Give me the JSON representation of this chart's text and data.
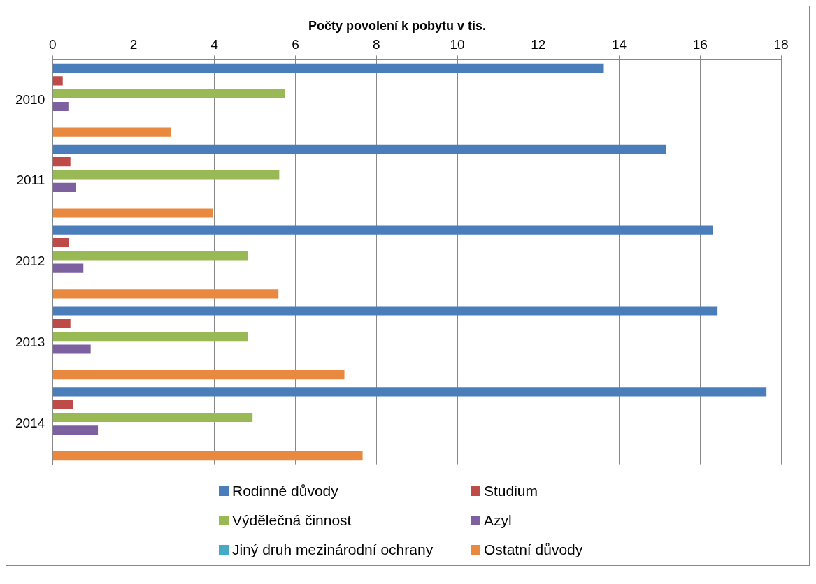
{
  "chart_data": {
    "type": "bar",
    "orientation": "horizontal",
    "title": "Počty povolení k pobytu v tis.",
    "categories": [
      "2010",
      "2011",
      "2012",
      "2013",
      "2014"
    ],
    "series": [
      {
        "name": "Rodinné důvody",
        "color": "#4a7ebb",
        "values": [
          13.62,
          15.15,
          16.32,
          16.43,
          17.64
        ]
      },
      {
        "name": "Studium",
        "color": "#be4b48",
        "values": [
          0.25,
          0.44,
          0.41,
          0.44,
          0.5
        ]
      },
      {
        "name": "Výdělečná činnost",
        "color": "#98b954",
        "values": [
          5.74,
          5.6,
          4.83,
          4.83,
          4.94
        ]
      },
      {
        "name": "Azyl",
        "color": "#7d60a0",
        "values": [
          0.39,
          0.57,
          0.76,
          0.94,
          1.12
        ]
      },
      {
        "name": "Jiný druh mezinárodní ochrany",
        "color": "#46aac5",
        "values": [
          0,
          0,
          0,
          0,
          0
        ]
      },
      {
        "name": "Ostatní důvody",
        "color": "#e8893f",
        "values": [
          2.93,
          3.96,
          5.58,
          7.21,
          7.66
        ]
      }
    ],
    "xlim": [
      0,
      18
    ],
    "xticks": [
      0,
      2,
      4,
      6,
      8,
      10,
      12,
      14,
      16,
      18
    ],
    "grid": "x",
    "legend": "bottom"
  }
}
